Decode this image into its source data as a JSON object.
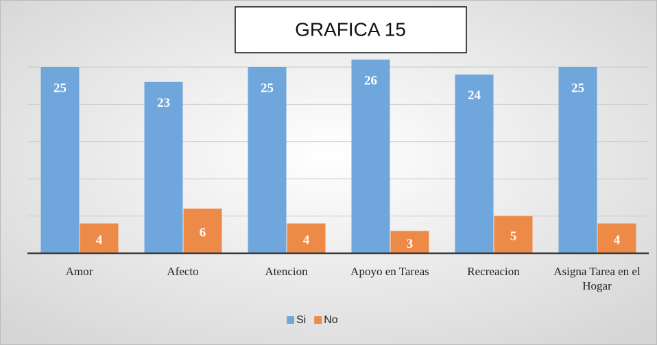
{
  "chart_data": {
    "type": "bar",
    "title": "GRAFICA 15",
    "categories": [
      "Amor",
      "Afecto",
      "Atencion",
      "Apoyo en Tareas",
      "Recreacion",
      "Asigna Tarea en el Hogar"
    ],
    "series": [
      {
        "name": "Si",
        "color": "#6fa6dc",
        "values": [
          25,
          23,
          25,
          26,
          24,
          25
        ]
      },
      {
        "name": "No",
        "color": "#ee8a47",
        "values": [
          4,
          6,
          4,
          3,
          5,
          4
        ]
      }
    ],
    "ylim": [
      0,
      30
    ],
    "yticks": [
      0,
      5,
      10,
      15,
      20,
      25
    ],
    "grid": true,
    "legend": "bottom"
  }
}
